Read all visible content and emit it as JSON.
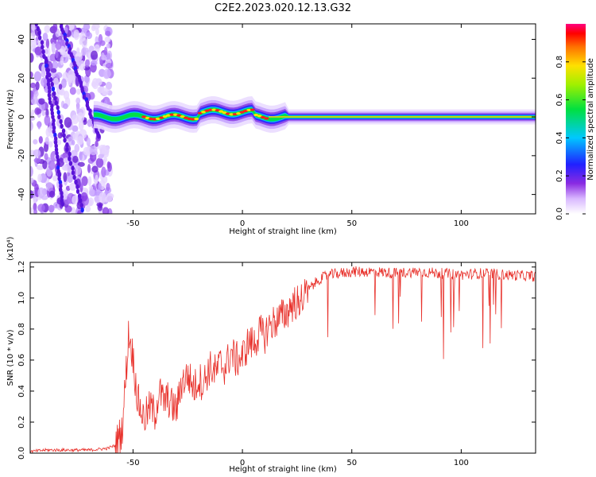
{
  "title": "C2E2.2023.020.12.13.G32",
  "chart_data": [
    {
      "type": "heatmap",
      "title": "",
      "xlabel": "Height of straight line (km)",
      "ylabel": "Frequency (Hz)",
      "xlim": [
        -97,
        134
      ],
      "ylim": [
        -50,
        48
      ],
      "x_ticks": [
        -50,
        0,
        50,
        100
      ],
      "x_tick_labels": [
        "-50",
        "0",
        "50",
        "100"
      ],
      "y_ticks": [
        -40,
        -20,
        0,
        20,
        40
      ],
      "y_tick_labels": [
        "-40",
        "-20",
        "0",
        "20",
        "40"
      ],
      "colorbar": {
        "label": "Normalized spectral amplitude",
        "range": [
          0,
          1
        ],
        "ticks": [
          0.0,
          0.2,
          0.4,
          0.6,
          0.8
        ],
        "tick_labels": [
          "0.0",
          "0.2",
          "0.4",
          "0.6",
          "0.8"
        ],
        "colormap": "rainbow (white → violet → blue → cyan → green → yellow → red → magenta)"
      },
      "features": {
        "noise_region_x": [
          -97,
          -60
        ],
        "carrier_frequency_hz": 0,
        "carrier_start_x": -68,
        "carrier_band_halfwidth_hz": [
          3,
          6
        ],
        "diagonal_tracks": [
          {
            "from": [
              -94,
              48
            ],
            "to": [
              -73,
              -48
            ]
          },
          {
            "from": [
              -83,
              48
            ],
            "to": [
              -66,
              -10
            ]
          },
          {
            "from": [
              -90,
              30
            ],
            "to": [
              -82,
              -45
            ]
          }
        ]
      }
    },
    {
      "type": "line",
      "title": "",
      "xlabel": "Height of straight line (km)",
      "ylabel": "SNR (10 * v/v)",
      "y_scale_label": "(x10⁴)",
      "xlim": [
        -97,
        134
      ],
      "ylim": [
        0,
        1.23
      ],
      "x_ticks": [
        -50,
        0,
        50,
        100
      ],
      "x_tick_labels": [
        "-50",
        "0",
        "50",
        "100"
      ],
      "y_ticks": [
        0.0,
        0.2,
        0.4,
        0.6,
        0.8,
        1.0,
        1.2
      ],
      "y_tick_labels": [
        "0.0",
        "0.2",
        "0.4",
        "0.6",
        "0.8",
        "1.0",
        "1.2"
      ],
      "color": "#e8312b",
      "series": [
        {
          "x": [
            -97,
            -90,
            -80,
            -70,
            -62,
            -58,
            -55,
            -53,
            -52,
            -50,
            -48,
            -45,
            -42,
            -40,
            -38,
            -36,
            -34,
            -32,
            -30,
            -28,
            -25,
            -22,
            -20,
            -18,
            -15,
            -12,
            -10,
            -8,
            -5,
            -3,
            0,
            3,
            5,
            8,
            10,
            12,
            15,
            18,
            20,
            22,
            25,
            28,
            30,
            32,
            35,
            38,
            40,
            45,
            50,
            60,
            70,
            80,
            90,
            100,
            110,
            120,
            134
          ],
          "y": [
            0.01,
            0.02,
            0.02,
            0.02,
            0.03,
            0.05,
            0.15,
            0.55,
            0.78,
            0.62,
            0.35,
            0.22,
            0.3,
            0.25,
            0.4,
            0.33,
            0.35,
            0.3,
            0.28,
            0.45,
            0.5,
            0.42,
            0.48,
            0.45,
            0.55,
            0.52,
            0.58,
            0.55,
            0.65,
            0.6,
            0.62,
            0.72,
            0.7,
            0.78,
            0.75,
            0.82,
            0.85,
            0.88,
            0.9,
            0.95,
            0.98,
            1.0,
            1.05,
            1.08,
            1.12,
            1.14,
            1.15,
            1.16,
            1.17,
            1.17,
            1.16,
            1.17,
            1.16,
            1.15,
            1.16,
            1.15,
            1.14
          ]
        }
      ]
    }
  ]
}
